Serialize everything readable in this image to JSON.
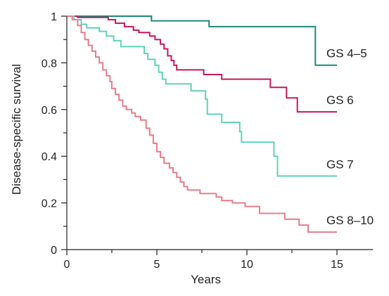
{
  "chart_data": {
    "type": "line",
    "step": true,
    "xlabel": "Years",
    "ylabel": "Disease-specific survival",
    "xlim": [
      0,
      17
    ],
    "ylim": [
      0,
      1
    ],
    "x_ticks": [
      0,
      5,
      10,
      15
    ],
    "x_tick_labels": [
      "0",
      "5",
      "10",
      "15"
    ],
    "y_ticks": [
      0,
      0.2,
      0.4,
      0.6,
      0.8,
      1
    ],
    "y_tick_labels": [
      "0",
      "0.2",
      "0.4",
      "0.6",
      "0.8",
      "1"
    ],
    "grid": false,
    "legend": "inline labels at right end of each curve",
    "series": [
      {
        "name": "GS 4–5",
        "color": "#1a8a78",
        "points": [
          [
            0,
            1
          ],
          [
            4.7,
            1
          ],
          [
            4.7,
            0.98
          ],
          [
            7.9,
            0.98
          ],
          [
            7.9,
            0.955
          ],
          [
            13.8,
            0.955
          ],
          [
            13.8,
            0.79
          ],
          [
            15,
            0.79
          ]
        ]
      },
      {
        "name": "GS 6",
        "color": "#c8185f",
        "points": [
          [
            0,
            1
          ],
          [
            0.6,
            1
          ],
          [
            0.6,
            0.995
          ],
          [
            2.3,
            0.995
          ],
          [
            2.3,
            0.985
          ],
          [
            2.7,
            0.985
          ],
          [
            2.7,
            0.97
          ],
          [
            3.2,
            0.97
          ],
          [
            3.2,
            0.955
          ],
          [
            3.7,
            0.955
          ],
          [
            3.7,
            0.94
          ],
          [
            4.0,
            0.94
          ],
          [
            4.0,
            0.93
          ],
          [
            4.6,
            0.93
          ],
          [
            4.6,
            0.915
          ],
          [
            4.9,
            0.915
          ],
          [
            4.9,
            0.9
          ],
          [
            5.2,
            0.9
          ],
          [
            5.2,
            0.88
          ],
          [
            5.4,
            0.88
          ],
          [
            5.4,
            0.86
          ],
          [
            5.6,
            0.86
          ],
          [
            5.6,
            0.83
          ],
          [
            5.8,
            0.83
          ],
          [
            5.8,
            0.81
          ],
          [
            5.95,
            0.81
          ],
          [
            5.95,
            0.79
          ],
          [
            6.1,
            0.79
          ],
          [
            6.1,
            0.77
          ],
          [
            7.6,
            0.77
          ],
          [
            7.6,
            0.75
          ],
          [
            8.6,
            0.75
          ],
          [
            8.6,
            0.73
          ],
          [
            11.3,
            0.73
          ],
          [
            11.3,
            0.695
          ],
          [
            12.2,
            0.695
          ],
          [
            12.2,
            0.65
          ],
          [
            12.8,
            0.65
          ],
          [
            12.8,
            0.59
          ],
          [
            15,
            0.59
          ]
        ]
      },
      {
        "name": "GS 7",
        "color": "#5fd3b5",
        "points": [
          [
            0,
            1
          ],
          [
            0.4,
            1
          ],
          [
            0.4,
            0.985
          ],
          [
            0.8,
            0.985
          ],
          [
            0.8,
            0.965
          ],
          [
            1.1,
            0.965
          ],
          [
            1.1,
            0.95
          ],
          [
            1.8,
            0.95
          ],
          [
            1.8,
            0.935
          ],
          [
            2.2,
            0.935
          ],
          [
            2.2,
            0.915
          ],
          [
            2.6,
            0.915
          ],
          [
            2.6,
            0.895
          ],
          [
            3.0,
            0.895
          ],
          [
            3.0,
            0.87
          ],
          [
            4.3,
            0.87
          ],
          [
            4.3,
            0.84
          ],
          [
            4.5,
            0.84
          ],
          [
            4.5,
            0.815
          ],
          [
            4.9,
            0.815
          ],
          [
            4.9,
            0.79
          ],
          [
            5.1,
            0.79
          ],
          [
            5.1,
            0.76
          ],
          [
            5.3,
            0.76
          ],
          [
            5.3,
            0.73
          ],
          [
            5.5,
            0.73
          ],
          [
            5.5,
            0.71
          ],
          [
            6.9,
            0.71
          ],
          [
            6.9,
            0.68
          ],
          [
            7.7,
            0.68
          ],
          [
            7.7,
            0.645
          ],
          [
            7.8,
            0.645
          ],
          [
            7.8,
            0.58
          ],
          [
            8.6,
            0.58
          ],
          [
            8.6,
            0.545
          ],
          [
            9.6,
            0.545
          ],
          [
            9.6,
            0.505
          ],
          [
            9.7,
            0.505
          ],
          [
            9.7,
            0.46
          ],
          [
            11.5,
            0.46
          ],
          [
            11.5,
            0.4
          ],
          [
            11.7,
            0.4
          ],
          [
            11.7,
            0.315
          ],
          [
            15,
            0.315
          ]
        ]
      },
      {
        "name": "GS 8–10",
        "color": "#e87b8c",
        "points": [
          [
            0,
            1
          ],
          [
            0.3,
            1
          ],
          [
            0.3,
            0.985
          ],
          [
            0.6,
            0.985
          ],
          [
            0.6,
            0.96
          ],
          [
            0.8,
            0.96
          ],
          [
            0.8,
            0.93
          ],
          [
            1.0,
            0.93
          ],
          [
            1.0,
            0.9
          ],
          [
            1.2,
            0.9
          ],
          [
            1.2,
            0.875
          ],
          [
            1.4,
            0.875
          ],
          [
            1.4,
            0.85
          ],
          [
            1.6,
            0.85
          ],
          [
            1.6,
            0.825
          ],
          [
            1.8,
            0.825
          ],
          [
            1.8,
            0.8
          ],
          [
            2.0,
            0.8
          ],
          [
            2.0,
            0.77
          ],
          [
            2.2,
            0.77
          ],
          [
            2.2,
            0.745
          ],
          [
            2.4,
            0.745
          ],
          [
            2.4,
            0.72
          ],
          [
            2.5,
            0.72
          ],
          [
            2.5,
            0.69
          ],
          [
            2.7,
            0.69
          ],
          [
            2.7,
            0.665
          ],
          [
            2.9,
            0.665
          ],
          [
            2.9,
            0.64
          ],
          [
            3.1,
            0.64
          ],
          [
            3.1,
            0.615
          ],
          [
            3.3,
            0.615
          ],
          [
            3.3,
            0.6
          ],
          [
            3.6,
            0.6
          ],
          [
            3.6,
            0.585
          ],
          [
            3.8,
            0.585
          ],
          [
            3.8,
            0.57
          ],
          [
            4.1,
            0.57
          ],
          [
            4.1,
            0.555
          ],
          [
            4.4,
            0.555
          ],
          [
            4.4,
            0.52
          ],
          [
            4.6,
            0.52
          ],
          [
            4.6,
            0.49
          ],
          [
            4.8,
            0.49
          ],
          [
            4.8,
            0.455
          ],
          [
            5.0,
            0.455
          ],
          [
            5.0,
            0.42
          ],
          [
            5.2,
            0.42
          ],
          [
            5.2,
            0.395
          ],
          [
            5.4,
            0.395
          ],
          [
            5.4,
            0.37
          ],
          [
            5.7,
            0.37
          ],
          [
            5.7,
            0.35
          ],
          [
            5.9,
            0.35
          ],
          [
            5.9,
            0.33
          ],
          [
            6.1,
            0.33
          ],
          [
            6.1,
            0.31
          ],
          [
            6.3,
            0.31
          ],
          [
            6.3,
            0.29
          ],
          [
            6.5,
            0.29
          ],
          [
            6.5,
            0.27
          ],
          [
            6.7,
            0.27
          ],
          [
            6.7,
            0.255
          ],
          [
            7.4,
            0.255
          ],
          [
            7.4,
            0.24
          ],
          [
            8.3,
            0.24
          ],
          [
            8.3,
            0.225
          ],
          [
            8.6,
            0.225
          ],
          [
            8.6,
            0.21
          ],
          [
            9.2,
            0.21
          ],
          [
            9.2,
            0.2
          ],
          [
            9.9,
            0.2
          ],
          [
            9.9,
            0.185
          ],
          [
            10.7,
            0.185
          ],
          [
            10.7,
            0.155
          ],
          [
            12.1,
            0.155
          ],
          [
            12.1,
            0.13
          ],
          [
            12.9,
            0.13
          ],
          [
            12.9,
            0.105
          ],
          [
            13.4,
            0.105
          ],
          [
            13.4,
            0.075
          ],
          [
            15,
            0.075
          ]
        ]
      }
    ]
  }
}
